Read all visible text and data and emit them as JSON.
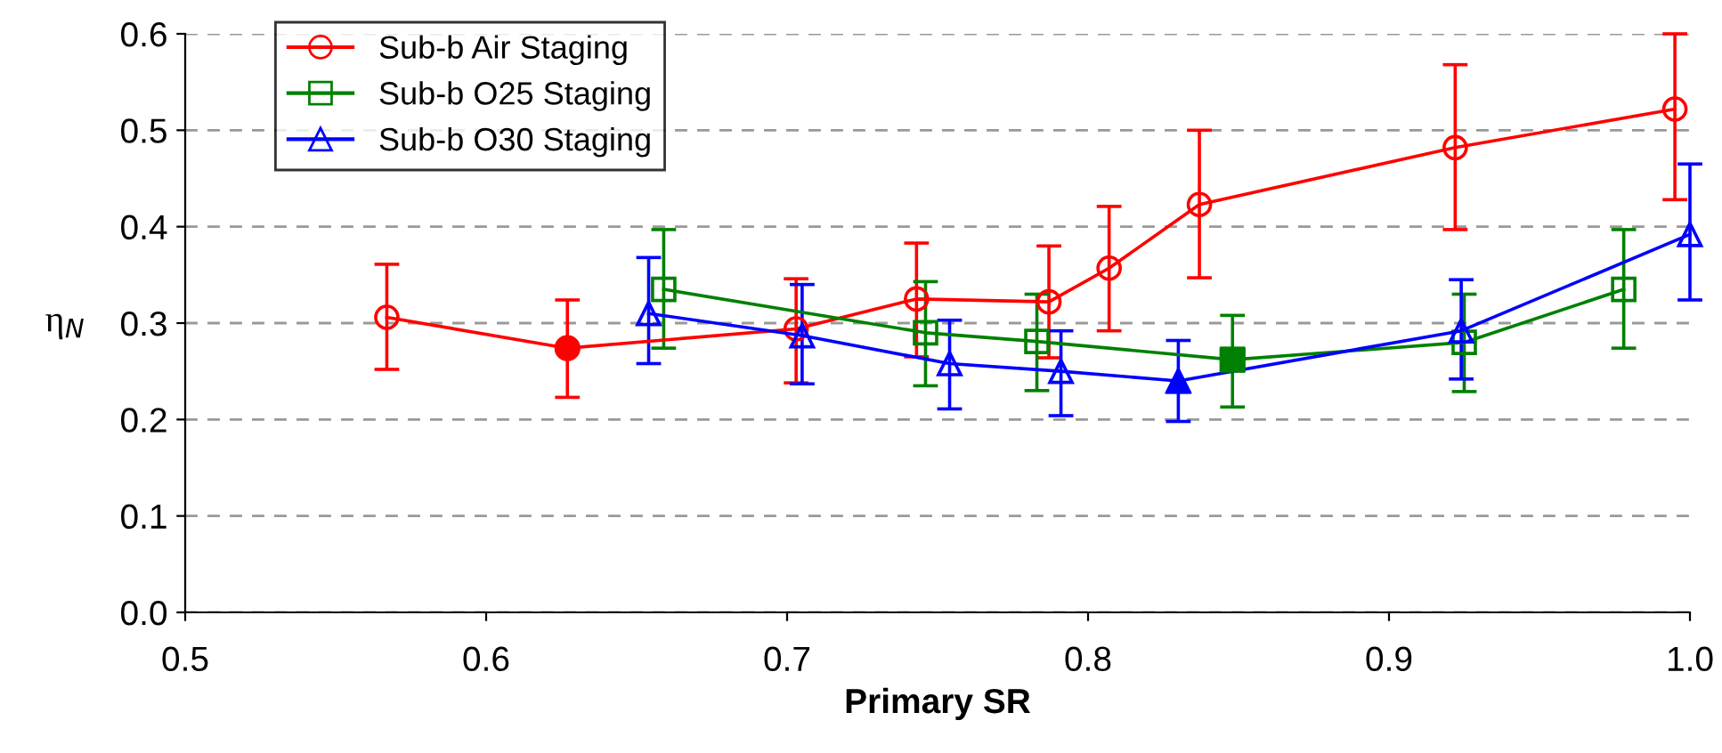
{
  "chart_data": {
    "type": "line",
    "xlabel": "Primary SR",
    "ylabel": "η$_{N}$",
    "xlim": [
      0.5,
      1.0
    ],
    "ylim": [
      0,
      0.6
    ],
    "xticks": [
      0.5,
      0.6,
      0.7,
      0.8,
      0.9,
      {
        "value": 1,
        "label": "1.0"
      }
    ],
    "yticks": [
      {
        "value": 0,
        "label": "0.0"
      },
      0.1,
      0.2,
      0.3,
      0.4,
      0.5,
      0.6
    ],
    "grid": "y",
    "legend": "top left",
    "series": [
      {
        "name": "Sub-b Air Staging",
        "color": "#ff0000",
        "marker": "circle",
        "x": [
          0.567,
          0.627,
          0.703,
          0.743,
          0.787,
          0.807,
          0.837,
          0.922,
          0.995
        ],
        "values": [
          0.306,
          0.274,
          0.294,
          0.325,
          0.322,
          0.357,
          0.423,
          0.482,
          0.522
        ],
        "errors": [
          [
            0.252,
            0.361
          ],
          [
            0.223,
            0.324
          ],
          [
            0.238,
            0.346
          ],
          [
            0.265,
            0.383
          ],
          [
            0.264,
            0.38
          ],
          [
            0.292,
            0.421
          ],
          [
            0.347,
            0.5
          ],
          [
            0.397,
            0.568
          ],
          [
            0.428,
            0.6
          ]
        ]
      },
      {
        "name": "Sub-b O25 Staging",
        "color": "#008000",
        "marker": "square",
        "x": [
          0.659,
          0.746,
          0.783,
          0.848,
          0.925,
          0.978
        ],
        "values": [
          0.335,
          0.29,
          0.281,
          0.262,
          0.28,
          0.335
        ],
        "errors": [
          [
            0.274,
            0.397
          ],
          [
            0.235,
            0.343
          ],
          [
            0.23,
            0.33
          ],
          [
            0.213,
            0.308
          ],
          [
            0.229,
            0.33
          ],
          [
            0.274,
            0.397
          ]
        ]
      },
      {
        "name": "Sub-b O30 Staging",
        "color": "#0000ff",
        "marker": "triangle",
        "x": [
          0.654,
          0.705,
          0.754,
          0.791,
          0.83,
          0.924,
          1.0
        ],
        "values": [
          0.31,
          0.287,
          0.258,
          0.25,
          0.24,
          0.292,
          0.392
        ],
        "errors": [
          [
            0.258,
            0.368
          ],
          [
            0.237,
            0.34
          ],
          [
            0.211,
            0.303
          ],
          [
            0.204,
            0.292
          ],
          [
            0.198,
            0.282
          ],
          [
            0.242,
            0.345
          ],
          [
            0.324,
            0.465
          ]
        ]
      },
      {
        "type": "scatter",
        "color": "#ff0000",
        "marker": "circle",
        "x": [
          0.627
        ],
        "values": [
          0.274
        ]
      },
      {
        "type": "scatter",
        "color": "#008000",
        "marker": "square",
        "x": [
          0.848
        ],
        "values": [
          0.262
        ]
      },
      {
        "type": "scatter",
        "color": "#0000ff",
        "marker": "triangle",
        "x": [
          0.83
        ],
        "values": [
          0.24
        ]
      }
    ]
  }
}
